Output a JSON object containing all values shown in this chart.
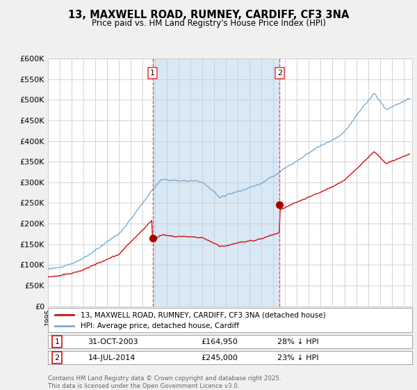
{
  "title": "13, MAXWELL ROAD, RUMNEY, CARDIFF, CF3 3NA",
  "subtitle": "Price paid vs. HM Land Registry's House Price Index (HPI)",
  "ylim": [
    0,
    600000
  ],
  "yticks": [
    0,
    50000,
    100000,
    150000,
    200000,
    250000,
    300000,
    350000,
    400000,
    450000,
    500000,
    550000,
    600000
  ],
  "bg_color": "#f0f0f0",
  "plot_bg_color": "#ffffff",
  "shade_color": "#d8e8f5",
  "hpi_color": "#7aadd4",
  "property_color": "#cc1111",
  "vline_color": "#ee4444",
  "marker_color": "#aa0000",
  "sale1_date": "31-OCT-2003",
  "sale1_price": 164950,
  "sale1_t": 2003.833,
  "sale2_date": "14-JUL-2014",
  "sale2_price": 245000,
  "sale2_t": 2014.542,
  "legend1": "13, MAXWELL ROAD, RUMNEY, CARDIFF, CF3 3NA (detached house)",
  "legend2": "HPI: Average price, detached house, Cardiff",
  "copyright": "Contains HM Land Registry data © Crown copyright and database right 2025.\nThis data is licensed under the Open Government Licence v3.0.",
  "sale1_hpi_note": "28% ↓ HPI",
  "sale2_hpi_note": "23% ↓ HPI"
}
